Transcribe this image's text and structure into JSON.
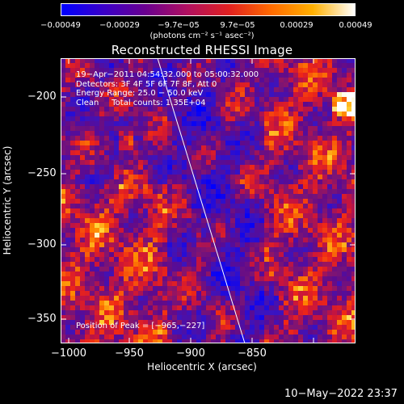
{
  "colorbar": {
    "tick_labels": [
      "−0.00049",
      "−0.00029",
      "−9.7e−05",
      "9.7e−05",
      "0.00029",
      "0.00049"
    ],
    "unit_text": "(photons cm⁻² s⁻¹ asec⁻²)",
    "colors": [
      "#0000ff",
      "#3a00c8",
      "#6a0090",
      "#b01060",
      "#e02020",
      "#ff6a00",
      "#ffb000",
      "#ffffff"
    ]
  },
  "plot": {
    "title": "Reconstructed RHESSI Image",
    "info_lines": [
      "19−Apr−2011 04:54:32.000 to 05:00:32.000",
      "Detectors: 3F 4F 5F 6F 7F 8F, Att 0",
      "Energy Range: 25.0 − 50.0 keV",
      "Clean     Total counts: 1.35E+04"
    ],
    "peak_text": "Position of Peak = [−965,−227]",
    "xlabel": "Heliocentric X (arcsec)",
    "ylabel": "Heliocentric Y (arcsec)",
    "x_ticks": [
      "−1000",
      "−950",
      "−900",
      "−850"
    ],
    "y_ticks": [
      "−200",
      "−250",
      "−300",
      "−350"
    ]
  },
  "footer": {
    "timestamp": "10−May−2022 23:37"
  }
}
